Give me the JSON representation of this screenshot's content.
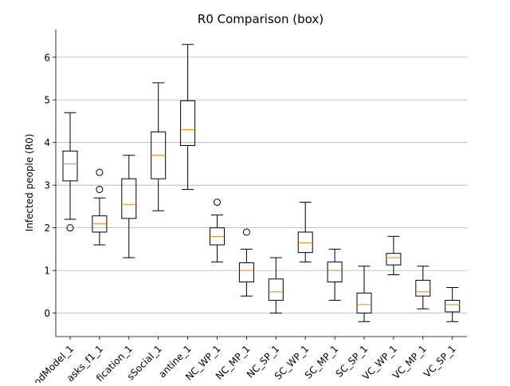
{
  "chart_data": {
    "type": "box",
    "title": "R0 Comparison (box)",
    "xlabel": "",
    "ylabel": "Infected people (R0)",
    "ylim": [
      -0.55,
      6.65
    ],
    "yticks": [
      0,
      1,
      2,
      3,
      4,
      5,
      6
    ],
    "grid": "y",
    "colors": {
      "box": "#000000",
      "median": "#ff7f0e",
      "grid": "#b0b0b0"
    },
    "categories": [
      "odModel_1",
      "asks_f1_1",
      "fication_1",
      "sSocial_1",
      "antine_1",
      "NC_WP_1",
      "NC_MP_1",
      "NC_SP_1",
      "SC_WP_1",
      "SC_MP_1",
      "SC_SP_1",
      "VC_WP_1",
      "VC_MP_1",
      "VC_SP_1"
    ],
    "boxes": [
      {
        "whisker_low": 2.2,
        "q1": 3.1,
        "median": 3.5,
        "q3": 3.8,
        "whisker_high": 4.7,
        "outliers": [
          2.0
        ]
      },
      {
        "whisker_low": 1.6,
        "q1": 1.9,
        "median": 2.1,
        "q3": 2.28,
        "whisker_high": 2.7,
        "outliers": [
          2.9,
          3.3
        ]
      },
      {
        "whisker_low": 1.3,
        "q1": 2.22,
        "median": 2.55,
        "q3": 3.15,
        "whisker_high": 3.7,
        "outliers": []
      },
      {
        "whisker_low": 2.4,
        "q1": 3.15,
        "median": 3.7,
        "q3": 4.25,
        "whisker_high": 5.4,
        "outliers": []
      },
      {
        "whisker_low": 2.9,
        "q1": 3.93,
        "median": 4.3,
        "q3": 4.98,
        "whisker_high": 6.3,
        "outliers": []
      },
      {
        "whisker_low": 1.2,
        "q1": 1.6,
        "median": 1.8,
        "q3": 2.0,
        "whisker_high": 2.3,
        "outliers": [
          2.6
        ]
      },
      {
        "whisker_low": 0.4,
        "q1": 0.73,
        "median": 1.0,
        "q3": 1.18,
        "whisker_high": 1.5,
        "outliers": [
          1.9
        ]
      },
      {
        "whisker_low": 0.0,
        "q1": 0.3,
        "median": 0.5,
        "q3": 0.8,
        "whisker_high": 1.3,
        "outliers": []
      },
      {
        "whisker_low": 1.2,
        "q1": 1.42,
        "median": 1.65,
        "q3": 1.9,
        "whisker_high": 2.6,
        "outliers": []
      },
      {
        "whisker_low": 0.3,
        "q1": 0.73,
        "median": 1.0,
        "q3": 1.2,
        "whisker_high": 1.5,
        "outliers": []
      },
      {
        "whisker_low": -0.2,
        "q1": 0.0,
        "median": 0.2,
        "q3": 0.47,
        "whisker_high": 1.1,
        "outliers": []
      },
      {
        "whisker_low": 0.9,
        "q1": 1.13,
        "median": 1.3,
        "q3": 1.4,
        "whisker_high": 1.8,
        "outliers": []
      },
      {
        "whisker_low": 0.1,
        "q1": 0.4,
        "median": 0.5,
        "q3": 0.77,
        "whisker_high": 1.1,
        "outliers": []
      },
      {
        "whisker_low": -0.2,
        "q1": 0.03,
        "median": 0.2,
        "q3": 0.3,
        "whisker_high": 0.6,
        "outliers": []
      }
    ]
  }
}
